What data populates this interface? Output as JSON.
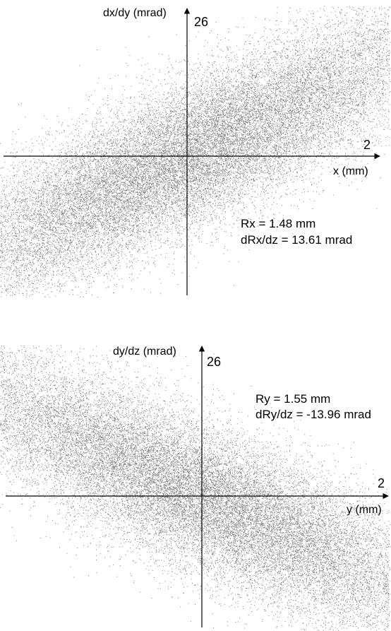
{
  "chart_data": [
    {
      "type": "scatter",
      "panel": "top",
      "ylabel": "dx/dy (mrad)",
      "xlabel": "x (mm)",
      "xlim": [
        -2,
        2
      ],
      "ylim": [
        -26,
        26
      ],
      "x_tick_label": "2",
      "y_tick_label": "26",
      "annotations": [
        "Rx = 1.48 mm",
        "dRx/dz = 13.61 mrad"
      ],
      "distribution": {
        "shape": "gaussian ellipse",
        "center": [
          0,
          0
        ],
        "rms_x": 1.48,
        "rms_y": 13.61,
        "correlation": 0.85,
        "points": 28000
      }
    },
    {
      "type": "scatter",
      "panel": "bottom",
      "ylabel": "dy/dz (mrad)",
      "xlabel": "y (mm)",
      "xlim": [
        -2,
        2
      ],
      "ylim": [
        -26,
        26
      ],
      "x_tick_label": "2",
      "y_tick_label": "26",
      "annotations": [
        "Ry = 1.55 mm",
        "dRy/dz = -13.96 mrad"
      ],
      "distribution": {
        "shape": "gaussian ellipse",
        "center": [
          0,
          0
        ],
        "rms_x": 1.55,
        "rms_y": 13.96,
        "correlation": -0.85,
        "points": 28000
      }
    }
  ]
}
